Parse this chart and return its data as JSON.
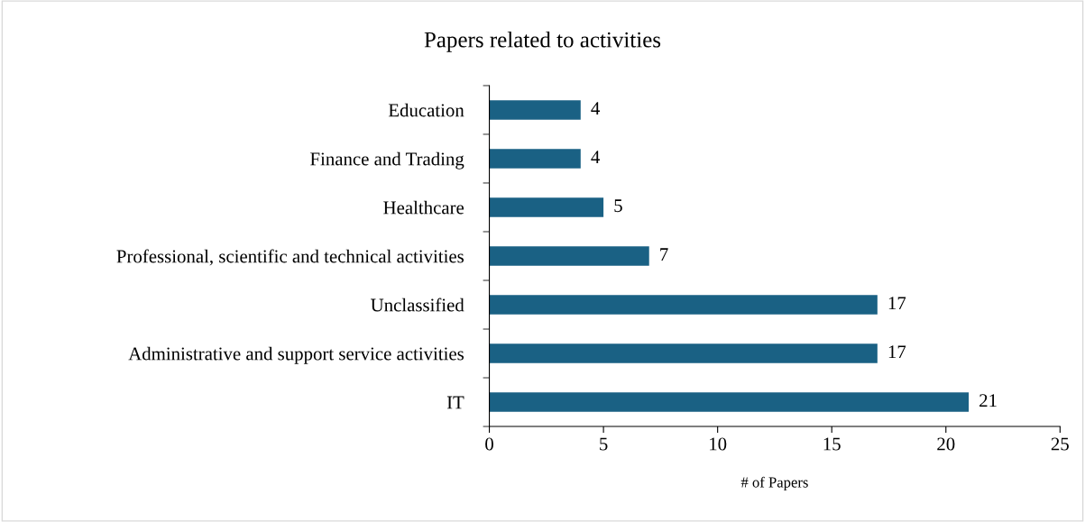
{
  "chart_data": {
    "type": "bar",
    "orientation": "horizontal",
    "title": "Papers related to activities",
    "xlabel": "# of Papers",
    "categories": [
      "Education",
      "Finance and Trading",
      "Healthcare",
      "Professional, scientific and technical activities",
      "Unclassified",
      "Administrative and support service activities",
      "IT"
    ],
    "values": [
      4,
      4,
      5,
      7,
      17,
      17,
      21
    ],
    "color": "#1a6184",
    "xlim": [
      0,
      25
    ],
    "xticks": [
      0,
      5,
      10,
      15,
      20,
      25
    ],
    "grid": false,
    "data_labels": true
  }
}
